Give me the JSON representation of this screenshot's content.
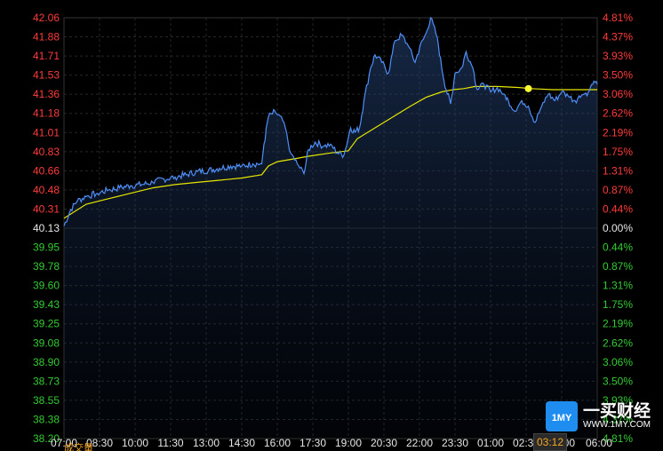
{
  "chart_data": {
    "type": "line",
    "base_price": 40.13,
    "ylim": [
      38.2,
      42.06
    ],
    "y_ticks_left": [
      "42.06",
      "41.88",
      "41.71",
      "41.53",
      "41.36",
      "41.18",
      "41.01",
      "40.83",
      "40.66",
      "40.48",
      "40.31",
      "40.13",
      "39.95",
      "39.78",
      "39.60",
      "39.43",
      "39.25",
      "39.08",
      "38.90",
      "38.73",
      "38.55",
      "38.38",
      "38.20"
    ],
    "y_ticks_right": [
      "4.81%",
      "4.37%",
      "3.93%",
      "3.50%",
      "3.06%",
      "2.62%",
      "2.19%",
      "1.75%",
      "1.31%",
      "0.87%",
      "0.44%",
      "0.00%",
      "0.44%",
      "0.87%",
      "1.31%",
      "1.75%",
      "2.19%",
      "2.62%",
      "3.06%",
      "3.50%",
      "3.93%",
      "4.37%",
      "4.81%"
    ],
    "x_ticks": [
      "07:00",
      "08:30",
      "10:00",
      "11:30",
      "13:00",
      "14:30",
      "16:00",
      "17:30",
      "19:00",
      "20:30",
      "22:00",
      "23:30",
      "01:00",
      "02:30",
      "04:00",
      "06:00"
    ],
    "grid": true,
    "series": [
      {
        "values": [
          [
            0,
            40.15
          ],
          [
            0.3,
            40.3
          ],
          [
            0.6,
            40.38
          ],
          [
            1.0,
            40.42
          ],
          [
            1.5,
            40.45
          ],
          [
            2.0,
            40.48
          ],
          [
            2.5,
            40.5
          ],
          [
            3.0,
            40.52
          ],
          [
            3.5,
            40.53
          ],
          [
            4.0,
            40.55
          ],
          [
            4.5,
            40.58
          ],
          [
            5.0,
            40.6
          ],
          [
            5.5,
            40.62
          ],
          [
            6.0,
            40.65
          ],
          [
            6.5,
            40.66
          ],
          [
            7.0,
            40.68
          ],
          [
            7.5,
            40.7
          ],
          [
            8.0,
            40.7
          ],
          [
            8.5,
            40.72
          ],
          [
            8.9,
            40.72
          ],
          [
            9.0,
            40.9
          ],
          [
            9.2,
            41.15
          ],
          [
            9.5,
            41.2
          ],
          [
            9.9,
            41.1
          ],
          [
            10.2,
            40.82
          ],
          [
            10.5,
            40.72
          ],
          [
            10.8,
            40.63
          ],
          [
            11.0,
            40.85
          ],
          [
            11.3,
            40.92
          ],
          [
            11.7,
            40.88
          ],
          [
            12.0,
            40.9
          ],
          [
            12.3,
            40.82
          ],
          [
            12.6,
            40.8
          ],
          [
            12.9,
            41.05
          ],
          [
            13.1,
            41.01
          ],
          [
            13.3,
            41.05
          ],
          [
            13.5,
            41.3
          ],
          [
            13.8,
            41.6
          ],
          [
            14.0,
            41.72
          ],
          [
            14.3,
            41.65
          ],
          [
            14.6,
            41.55
          ],
          [
            14.9,
            41.85
          ],
          [
            15.2,
            41.9
          ],
          [
            15.5,
            41.8
          ],
          [
            15.8,
            41.65
          ],
          [
            16.0,
            41.78
          ],
          [
            16.3,
            41.92
          ],
          [
            16.5,
            42.06
          ],
          [
            16.8,
            41.88
          ],
          [
            17.0,
            41.6
          ],
          [
            17.2,
            41.4
          ],
          [
            17.4,
            41.27
          ],
          [
            17.6,
            41.55
          ],
          [
            17.9,
            41.6
          ],
          [
            18.1,
            41.75
          ],
          [
            18.4,
            41.6
          ],
          [
            18.6,
            41.4
          ],
          [
            18.9,
            41.45
          ],
          [
            19.2,
            41.38
          ],
          [
            19.5,
            41.42
          ],
          [
            19.8,
            41.36
          ],
          [
            20.0,
            41.3
          ],
          [
            20.3,
            41.2
          ],
          [
            20.6,
            41.3
          ],
          [
            20.9,
            41.25
          ],
          [
            21.2,
            41.1
          ],
          [
            21.5,
            41.25
          ],
          [
            21.8,
            41.36
          ],
          [
            22.1,
            41.3
          ],
          [
            22.4,
            41.38
          ],
          [
            22.7,
            41.34
          ],
          [
            23.0,
            41.3
          ],
          [
            23.3,
            41.35
          ],
          [
            23.6,
            41.38
          ],
          [
            23.8,
            41.45
          ],
          [
            24.0,
            41.45
          ]
        ]
      },
      {
        "values": [
          [
            0,
            40.22
          ],
          [
            1.0,
            40.35
          ],
          [
            2.0,
            40.4
          ],
          [
            3.0,
            40.45
          ],
          [
            4.0,
            40.5
          ],
          [
            5.0,
            40.53
          ],
          [
            6.0,
            40.55
          ],
          [
            7.0,
            40.57
          ],
          [
            8.0,
            40.59
          ],
          [
            8.9,
            40.62
          ],
          [
            9.2,
            40.7
          ],
          [
            9.6,
            40.74
          ],
          [
            10.2,
            40.76
          ],
          [
            11.0,
            40.79
          ],
          [
            12.0,
            40.82
          ],
          [
            12.8,
            40.84
          ],
          [
            13.2,
            40.95
          ],
          [
            14.0,
            41.05
          ],
          [
            14.8,
            41.15
          ],
          [
            15.6,
            41.25
          ],
          [
            16.3,
            41.33
          ],
          [
            17.0,
            41.38
          ],
          [
            17.5,
            41.4
          ],
          [
            18.0,
            41.41
          ],
          [
            18.5,
            41.43
          ],
          [
            19.5,
            41.43
          ],
          [
            20.5,
            41.42
          ],
          [
            21.0,
            41.41
          ],
          [
            22.0,
            41.4
          ],
          [
            23.0,
            41.4
          ],
          [
            24.0,
            41.4
          ]
        ]
      }
    ],
    "marker": {
      "x": 20.9,
      "y": 41.41
    },
    "colors": {
      "price_line": "#4f8ff7",
      "avg_line": "#e6e600",
      "up_text": "#ff3b3b",
      "down_text": "#33cc33",
      "base_text": "#e6e6e6",
      "grid": "#262626",
      "marker": "#ffff33"
    }
  },
  "badge": {
    "brand": "一买财经",
    "url": "WWW.1MY.COM",
    "logo_text": "1MY"
  },
  "crosshair": {
    "time": "03:12"
  },
  "footer": {
    "volume_label": "成交量"
  }
}
